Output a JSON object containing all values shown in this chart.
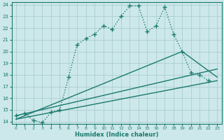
{
  "xlabel": "Humidex (Indice chaleur)",
  "bg_color": "#cde8ea",
  "grid_color": "#aacdd2",
  "line_color": "#1a7a6e",
  "xlim": [
    -0.5,
    23.5
  ],
  "ylim": [
    13.8,
    24.2
  ],
  "xticks": [
    0,
    1,
    2,
    3,
    4,
    5,
    6,
    7,
    8,
    9,
    10,
    11,
    12,
    13,
    14,
    15,
    16,
    17,
    18,
    19,
    20,
    21,
    22,
    23
  ],
  "yticks": [
    14,
    15,
    16,
    17,
    18,
    19,
    20,
    21,
    22,
    23,
    24
  ],
  "series": [
    {
      "x": [
        0,
        1,
        2,
        3,
        4,
        5,
        6,
        7,
        8,
        9,
        10,
        11,
        12,
        13,
        14,
        15,
        16,
        17,
        18,
        19,
        20,
        21,
        22
      ],
      "y": [
        14.5,
        14.7,
        14.1,
        13.9,
        14.8,
        15.0,
        17.8,
        20.6,
        21.1,
        21.5,
        22.2,
        21.9,
        23.0,
        23.9,
        23.9,
        21.7,
        22.2,
        23.8,
        21.5,
        20.0,
        18.2,
        18.0,
        17.5
      ],
      "linestyle": ":",
      "marker": "+",
      "markersize": 4,
      "linewidth": 1.0
    },
    {
      "x": [
        0,
        23
      ],
      "y": [
        14.5,
        18.5
      ],
      "linestyle": "-",
      "marker": null,
      "linewidth": 1.0
    },
    {
      "x": [
        0,
        23
      ],
      "y": [
        14.2,
        17.5
      ],
      "linestyle": "-",
      "marker": null,
      "linewidth": 1.0
    },
    {
      "x": [
        0,
        19,
        23
      ],
      "y": [
        14.2,
        20.0,
        17.8
      ],
      "linestyle": "-",
      "marker": null,
      "linewidth": 1.0
    }
  ]
}
